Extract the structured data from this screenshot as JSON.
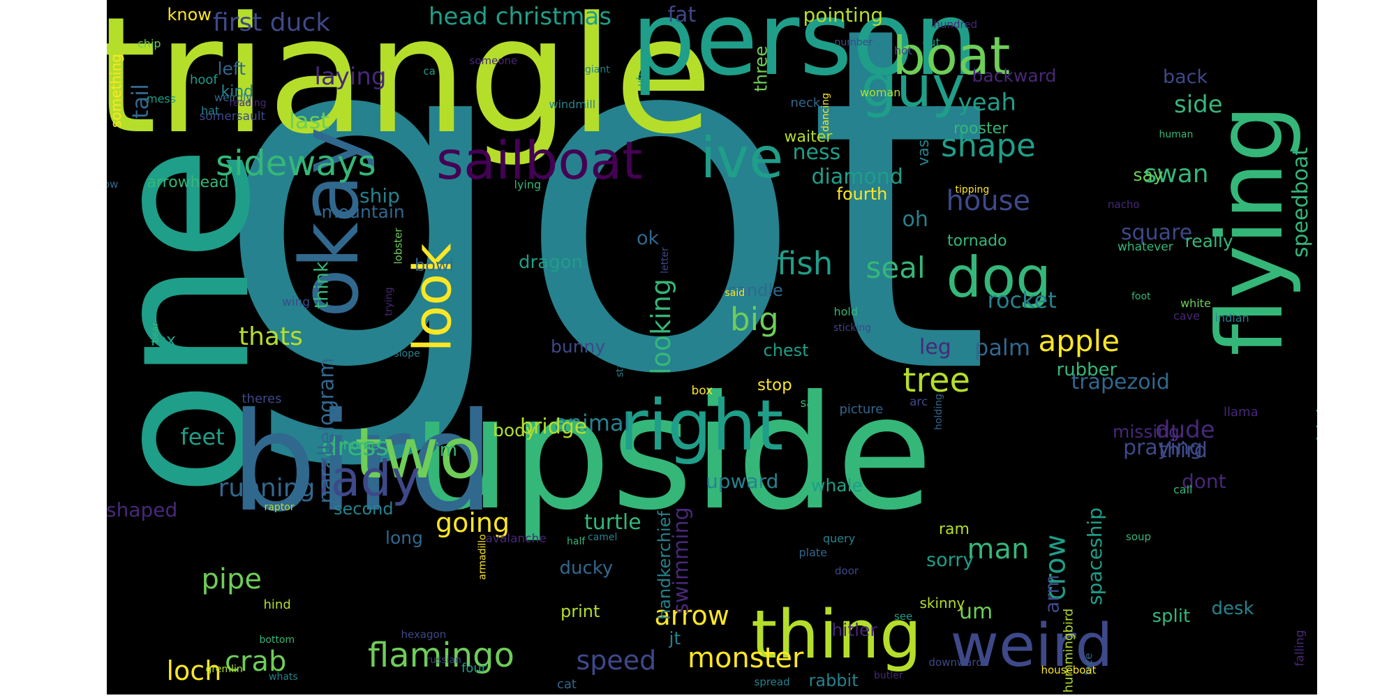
{
  "colors": {
    "background": "#000000",
    "palette": [
      "#fde725",
      "#b5de2b",
      "#6ece58",
      "#35b779",
      "#1f9e89",
      "#26828e",
      "#31688e",
      "#3e4989",
      "#482878",
      "#440154"
    ]
  },
  "words": [
    {
      "text": "got",
      "color": "#26828e"
    },
    {
      "text": "one",
      "color": "#1f9e89"
    },
    {
      "text": "upside",
      "color": "#35b779"
    },
    {
      "text": "triangle",
      "color": "#b5de2b"
    },
    {
      "text": "bird",
      "color": "#31688e"
    },
    {
      "text": "person",
      "color": "#1f9e89"
    },
    {
      "text": "flying",
      "color": "#35b779"
    },
    {
      "text": "okay",
      "color": "#31688e"
    },
    {
      "text": "two",
      "color": "#6ece58"
    },
    {
      "text": "right",
      "color": "#1f9e89"
    },
    {
      "text": "thing",
      "color": "#b5de2b"
    },
    {
      "text": "weird",
      "color": "#3e4989"
    },
    {
      "text": "boat",
      "color": "#6ece58"
    },
    {
      "text": "guy",
      "color": "#1f9e89"
    },
    {
      "text": "dog",
      "color": "#35b779"
    },
    {
      "text": "sailboat",
      "color": "#440154"
    },
    {
      "text": "ive",
      "color": "#1f9e89"
    },
    {
      "text": "look",
      "color": "#fde725"
    },
    {
      "text": "lady",
      "color": "#3e4989"
    },
    {
      "text": "sideways",
      "color": "#35b779"
    },
    {
      "text": "flamingo",
      "color": "#6ece58"
    },
    {
      "text": "tree",
      "color": "#b5de2b"
    },
    {
      "text": "apple",
      "color": "#fde725"
    },
    {
      "text": "seal",
      "color": "#35b779"
    },
    {
      "text": "fish",
      "color": "#1f9e89"
    },
    {
      "text": "big",
      "color": "#6ece58"
    },
    {
      "text": "shape",
      "color": "#1f9e89"
    },
    {
      "text": "house",
      "color": "#3e4989"
    },
    {
      "text": "monster",
      "color": "#fde725"
    },
    {
      "text": "crab",
      "color": "#6ece58"
    },
    {
      "text": "loch",
      "color": "#fde725"
    },
    {
      "text": "speed",
      "color": "#3e4989"
    },
    {
      "text": "arrow",
      "color": "#fde725"
    },
    {
      "text": "man",
      "color": "#35b779"
    },
    {
      "text": "crow",
      "color": "#1f9e89"
    },
    {
      "text": "going",
      "color": "#fde725"
    },
    {
      "text": "pipe",
      "color": "#6ece58"
    },
    {
      "text": "thats",
      "color": "#b5de2b"
    },
    {
      "text": "running",
      "color": "#31688e"
    },
    {
      "text": "dress",
      "color": "#35b779"
    },
    {
      "text": "feet",
      "color": "#1f9e89"
    },
    {
      "text": "last",
      "color": "#6ece58"
    },
    {
      "text": "yeah",
      "color": "#1f9e89"
    },
    {
      "text": "first duck",
      "color": "#3e4989"
    },
    {
      "text": "head christmas",
      "color": "#1f9e89"
    },
    {
      "text": "fat",
      "color": "#3e4989"
    },
    {
      "text": "pointing",
      "color": "#b5de2b"
    },
    {
      "text": "know",
      "color": "#fde725"
    },
    {
      "text": "left",
      "color": "#31688e"
    },
    {
      "text": "kind",
      "color": "#26828e"
    },
    {
      "text": "laying",
      "color": "#482878"
    },
    {
      "text": "tail",
      "color": "#31688e"
    },
    {
      "text": "something",
      "color": "#fde725"
    },
    {
      "text": "chip",
      "color": "#6ece58"
    },
    {
      "text": "mess",
      "color": "#1f9e89"
    },
    {
      "text": "arrowhead",
      "color": "#35b779"
    },
    {
      "text": "bowl",
      "color": "#31688e"
    },
    {
      "text": "ship",
      "color": "#26828e"
    },
    {
      "text": "mountain",
      "color": "#31688e"
    },
    {
      "text": "diamond",
      "color": "#1f9e89"
    },
    {
      "text": "ness",
      "color": "#1f9e89"
    },
    {
      "text": "waiter",
      "color": "#b5de2b"
    },
    {
      "text": "three",
      "color": "#6ece58"
    },
    {
      "text": "fourth",
      "color": "#fde725"
    },
    {
      "text": "vase",
      "color": "#26828e"
    },
    {
      "text": "rooster",
      "color": "#35b779"
    },
    {
      "text": "neck",
      "color": "#31688e"
    },
    {
      "text": "backward",
      "color": "#482878"
    },
    {
      "text": "back",
      "color": "#3e4989"
    },
    {
      "text": "side",
      "color": "#35b779"
    },
    {
      "text": "swan",
      "color": "#35b779"
    },
    {
      "text": "say",
      "color": "#6ece58"
    },
    {
      "text": "square",
      "color": "#3e4989"
    },
    {
      "text": "really",
      "color": "#35b779"
    },
    {
      "text": "speedboat",
      "color": "#35b779"
    },
    {
      "text": "oh",
      "color": "#26828e"
    },
    {
      "text": "tornado",
      "color": "#35b779"
    },
    {
      "text": "rocket",
      "color": "#26828e"
    },
    {
      "text": "palm",
      "color": "#31688e"
    },
    {
      "text": "leg",
      "color": "#482878"
    },
    {
      "text": "rubber",
      "color": "#35b779"
    },
    {
      "text": "trapezoid",
      "color": "#31688e"
    },
    {
      "text": "dude",
      "color": "#482878"
    },
    {
      "text": "third",
      "color": "#3e4989"
    },
    {
      "text": "alright",
      "color": "#35b779"
    },
    {
      "text": "praying",
      "color": "#3e4989"
    },
    {
      "text": "dont",
      "color": "#482878"
    },
    {
      "text": "missing",
      "color": "#482878"
    },
    {
      "text": "ok",
      "color": "#31688e"
    },
    {
      "text": "think",
      "color": "#35b779"
    },
    {
      "text": "dragon",
      "color": "#1f9e89"
    },
    {
      "text": "candle",
      "color": "#31688e"
    },
    {
      "text": "looking",
      "color": "#35b779"
    },
    {
      "text": "chest",
      "color": "#1f9e89"
    },
    {
      "text": "stop",
      "color": "#fde725"
    },
    {
      "text": "bunny",
      "color": "#3e4989"
    },
    {
      "text": "animal",
      "color": "#26828e"
    },
    {
      "text": "bridge",
      "color": "#b5de2b"
    },
    {
      "text": "body",
      "color": "#b5de2b"
    },
    {
      "text": "im",
      "color": "#35b779"
    },
    {
      "text": "home",
      "color": "#35b779"
    },
    {
      "text": "parallelogram",
      "color": "#31688e"
    },
    {
      "text": "second",
      "color": "#26828e"
    },
    {
      "text": "shaped",
      "color": "#482878"
    },
    {
      "text": "fox",
      "color": "#1f9e89"
    },
    {
      "text": "upward",
      "color": "#26828e"
    },
    {
      "text": "swimming",
      "color": "#482878"
    },
    {
      "text": "handkerchief",
      "color": "#26828e"
    },
    {
      "text": "turtle",
      "color": "#35b779"
    },
    {
      "text": "long",
      "color": "#31688e"
    },
    {
      "text": "whale",
      "color": "#1f9e89"
    },
    {
      "text": "ram",
      "color": "#b5de2b"
    },
    {
      "text": "sorry",
      "color": "#1f9e89"
    },
    {
      "text": "um",
      "color": "#6ece58"
    },
    {
      "text": "arm",
      "color": "#3e4989"
    },
    {
      "text": "spaceship",
      "color": "#1f9e89"
    },
    {
      "text": "split",
      "color": "#35b779"
    },
    {
      "text": "desk",
      "color": "#26828e"
    },
    {
      "text": "hitler",
      "color": "#482878"
    },
    {
      "text": "jt",
      "color": "#26828e"
    },
    {
      "text": "rabbit",
      "color": "#26828e"
    },
    {
      "text": "cat",
      "color": "#31688e"
    },
    {
      "text": "ducky",
      "color": "#31688e"
    },
    {
      "text": "print",
      "color": "#b5de2b"
    },
    {
      "text": "skinny",
      "color": "#b5de2b"
    },
    {
      "text": "hummingbird",
      "color": "#b5de2b"
    },
    {
      "text": "face",
      "color": "#31688e"
    },
    {
      "text": "falling",
      "color": "#482878"
    },
    {
      "text": "downward",
      "color": "#3e4989"
    },
    {
      "text": "houseboat",
      "color": "#fde725"
    },
    {
      "text": "butler",
      "color": "#482878"
    },
    {
      "text": "spread",
      "color": "#26828e"
    },
    {
      "text": "four",
      "color": "#1f9e89"
    },
    {
      "text": "russian",
      "color": "#3e4989"
    },
    {
      "text": "hexagon",
      "color": "#3e4989"
    },
    {
      "text": "hind",
      "color": "#b5de2b"
    },
    {
      "text": "bottom",
      "color": "#35b779"
    },
    {
      "text": "gremlin",
      "color": "#b5de2b"
    },
    {
      "text": "whats",
      "color": "#26828e"
    },
    {
      "text": "raptor",
      "color": "#b5de2b"
    },
    {
      "text": "avalanche",
      "color": "#482878"
    },
    {
      "text": "armadillo",
      "color": "#fde725"
    },
    {
      "text": "half",
      "color": "#35b779"
    },
    {
      "text": "camel",
      "color": "#26828e"
    },
    {
      "text": "plate",
      "color": "#31688e"
    },
    {
      "text": "query",
      "color": "#26828e"
    },
    {
      "text": "door",
      "color": "#3e4989"
    },
    {
      "text": "see",
      "color": "#1f9e89"
    },
    {
      "text": "soup",
      "color": "#35b779"
    },
    {
      "text": "call",
      "color": "#35b779"
    },
    {
      "text": "llama",
      "color": "#482878"
    },
    {
      "text": "arc",
      "color": "#3e4989"
    },
    {
      "text": "holding",
      "color": "#31688e"
    },
    {
      "text": "picture",
      "color": "#31688e"
    },
    {
      "text": "sail",
      "color": "#35b779"
    },
    {
      "text": "box",
      "color": "#fde725"
    },
    {
      "text": "theres",
      "color": "#3e4989"
    },
    {
      "text": "slope",
      "color": "#26828e"
    },
    {
      "text": "standing",
      "color": "#26828e"
    },
    {
      "text": "trying",
      "color": "#482878"
    },
    {
      "text": "facing",
      "color": "#26828e"
    },
    {
      "text": "wing",
      "color": "#3e4989"
    },
    {
      "text": "bear",
      "color": "#35b779"
    },
    {
      "text": "lobster",
      "color": "#6ece58"
    },
    {
      "text": "letter",
      "color": "#3e4989"
    },
    {
      "text": "hold",
      "color": "#35b779"
    },
    {
      "text": "sticking",
      "color": "#3e4989"
    },
    {
      "text": "said",
      "color": "#fde725"
    },
    {
      "text": "lying",
      "color": "#35b779"
    },
    {
      "text": "now",
      "color": "#31688e"
    },
    {
      "text": "windmill",
      "color": "#26828e"
    },
    {
      "text": "somersault",
      "color": "#3e4989"
    },
    {
      "text": "reading",
      "color": "#482878"
    },
    {
      "text": "weirdly",
      "color": "#31688e"
    },
    {
      "text": "hat",
      "color": "#26828e"
    },
    {
      "text": "hoof",
      "color": "#1f9e89"
    },
    {
      "text": "ca",
      "color": "#1f9e89"
    },
    {
      "text": "someone",
      "color": "#482878"
    },
    {
      "text": "uh",
      "color": "#1f9e89"
    },
    {
      "text": "giant",
      "color": "#26828e"
    },
    {
      "text": "dancing",
      "color": "#fde725"
    },
    {
      "text": "number",
      "color": "#3e4989"
    },
    {
      "text": "hot",
      "color": "#3e4989"
    },
    {
      "text": "cut",
      "color": "#1f9e89"
    },
    {
      "text": "hundred",
      "color": "#482878"
    },
    {
      "text": "woman",
      "color": "#b5de2b"
    },
    {
      "text": "human",
      "color": "#35b779"
    },
    {
      "text": "tipping",
      "color": "#fde725"
    },
    {
      "text": "nacho",
      "color": "#482878"
    },
    {
      "text": "whatever",
      "color": "#35b779"
    },
    {
      "text": "white",
      "color": "#6ece58"
    },
    {
      "text": "cave",
      "color": "#482878"
    },
    {
      "text": "indian",
      "color": "#26828e"
    },
    {
      "text": "foot",
      "color": "#35b779"
    },
    {
      "text": "done",
      "color": "#31688e"
    },
    {
      "text": "little",
      "color": "#31688e"
    },
    {
      "text": "bending",
      "color": "#482878"
    }
  ]
}
